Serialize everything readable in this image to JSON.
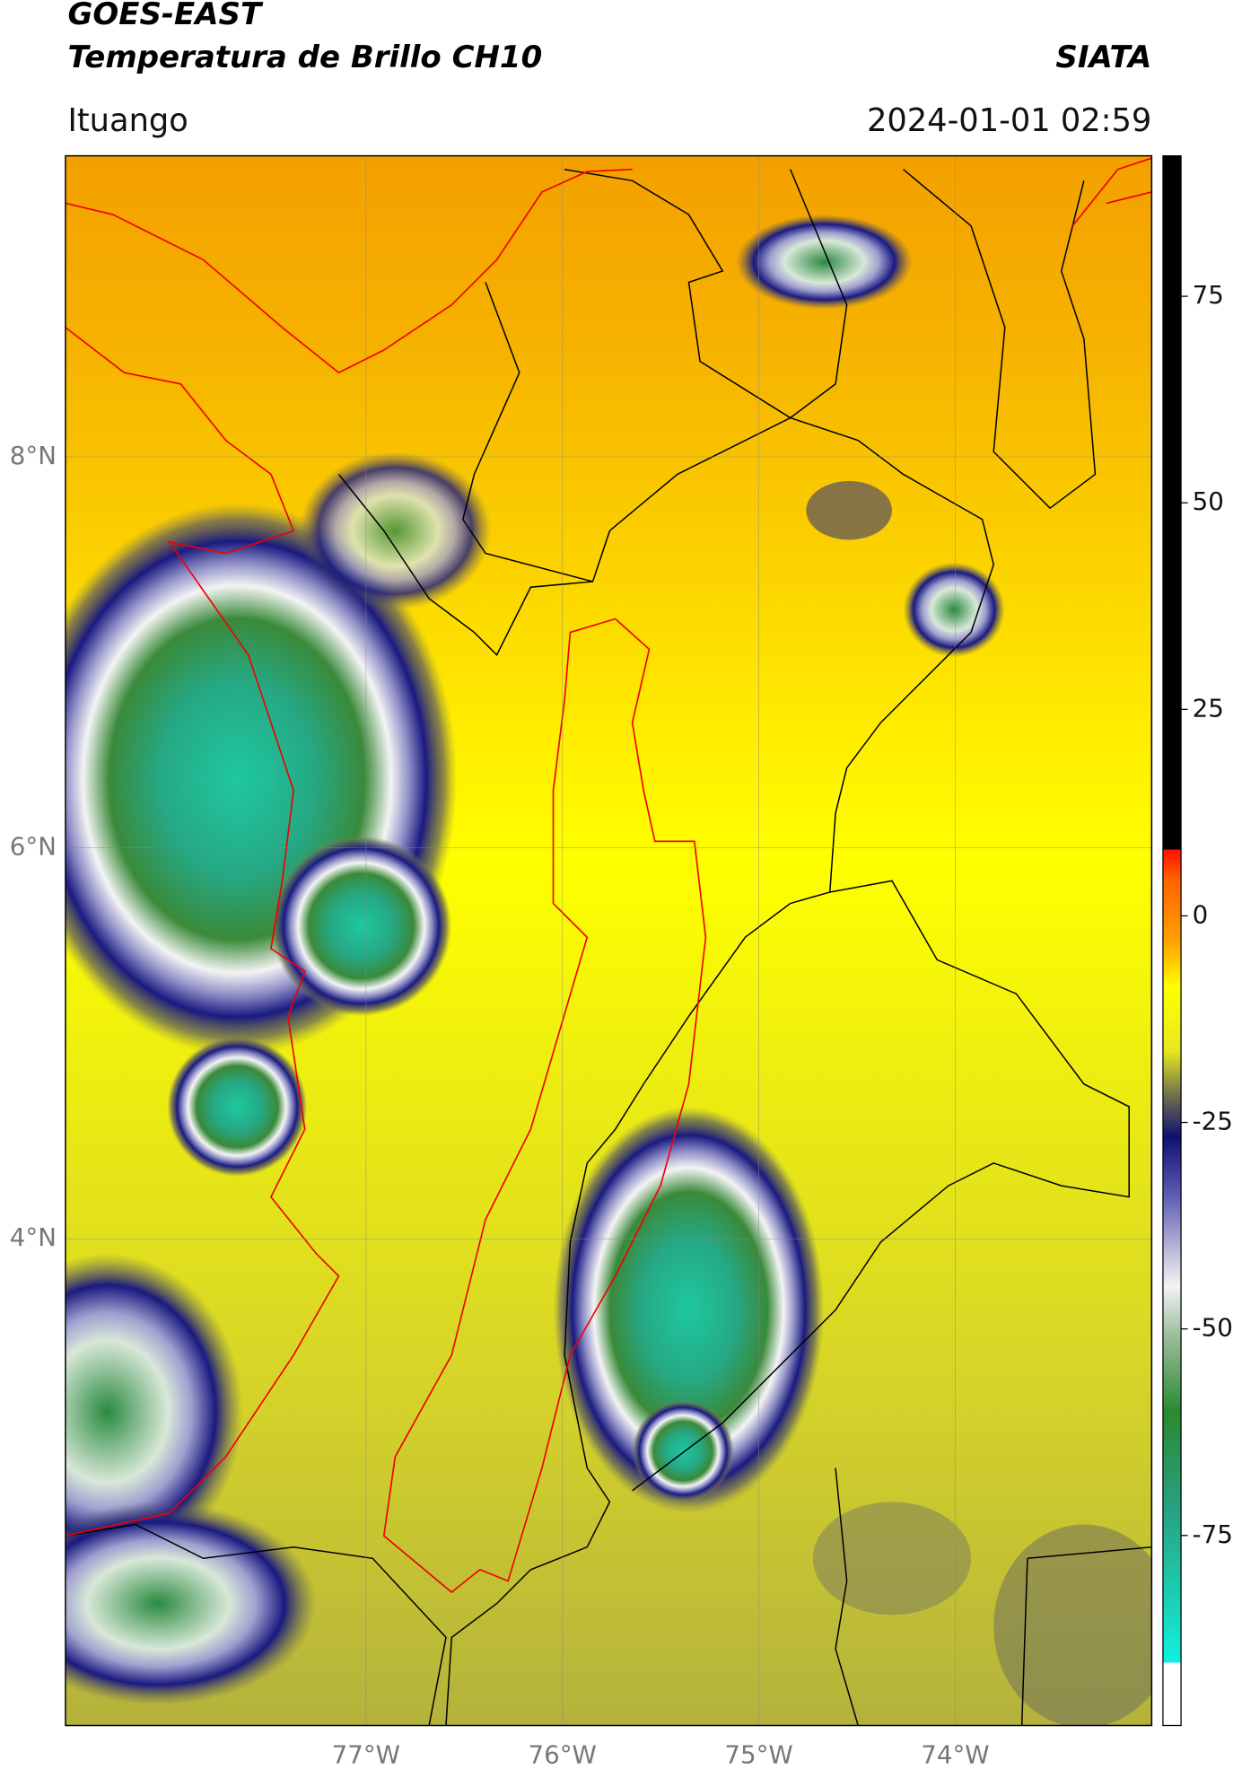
{
  "header": {
    "title": "GOES-EAST",
    "subtitle": "Temperatura de Brillo CH10",
    "source": "SIATA",
    "location": "Ituango",
    "datetime": "2024-01-01 02:59"
  },
  "map": {
    "lon_range": [
      -78.53,
      -73.0
    ],
    "lat_range": [
      1.51,
      9.54
    ],
    "lon_ticks": [
      {
        "value": -77,
        "label": "77°W"
      },
      {
        "value": -76,
        "label": "76°W"
      },
      {
        "value": -75,
        "label": "75°W"
      },
      {
        "value": -74,
        "label": "74°W"
      }
    ],
    "lat_ticks": [
      {
        "value": 8,
        "label": "8°N"
      },
      {
        "value": 6,
        "label": "6°N"
      },
      {
        "value": 4,
        "label": "4°N"
      }
    ],
    "grid": true
  },
  "colorbar": {
    "lim": [
      -98,
      92
    ],
    "ticks": [
      -75,
      -50,
      -25,
      0,
      25,
      50,
      75
    ]
  }
}
